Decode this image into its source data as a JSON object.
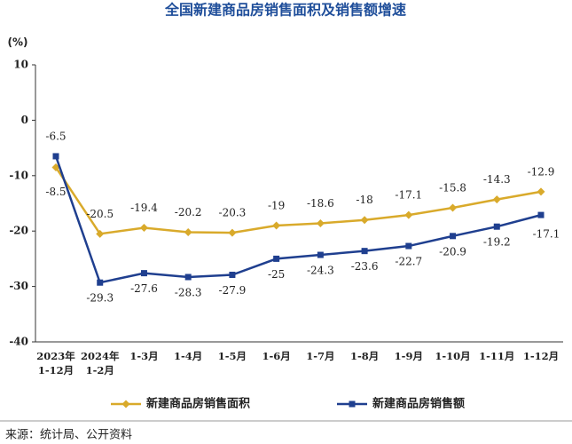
{
  "chart_data": {
    "type": "line",
    "title": "全国新建商品房销售面积及销售额增速",
    "y_label": "(%)",
    "categories": [
      "2023年\n1-12月",
      "2024年\n1-2月",
      "1-3月",
      "1-4月",
      "1-5月",
      "1-6月",
      "1-7月",
      "1-8月",
      "1-9月",
      "1-10月",
      "1-11月",
      "1-12月"
    ],
    "series": [
      {
        "name": "新建商品房销售面积",
        "color": "#d9aa2b",
        "marker": "diamond",
        "values": [
          -8.5,
          -20.5,
          -19.4,
          -20.2,
          -20.3,
          -19.0,
          -18.6,
          -18.0,
          -17.1,
          -15.8,
          -14.3,
          -12.9
        ]
      },
      {
        "name": "新建商品房销售额",
        "color": "#1f3f8f",
        "marker": "square",
        "values": [
          -6.5,
          -29.3,
          -27.6,
          -28.3,
          -27.9,
          -25.0,
          -24.3,
          -23.6,
          -22.7,
          -20.9,
          -19.2,
          -17.1
        ]
      }
    ],
    "ylim": [
      -40,
      10
    ],
    "yticks": [
      10,
      0,
      -10,
      -20,
      -30,
      -40
    ],
    "note": "来源：统计局、公开资料"
  }
}
